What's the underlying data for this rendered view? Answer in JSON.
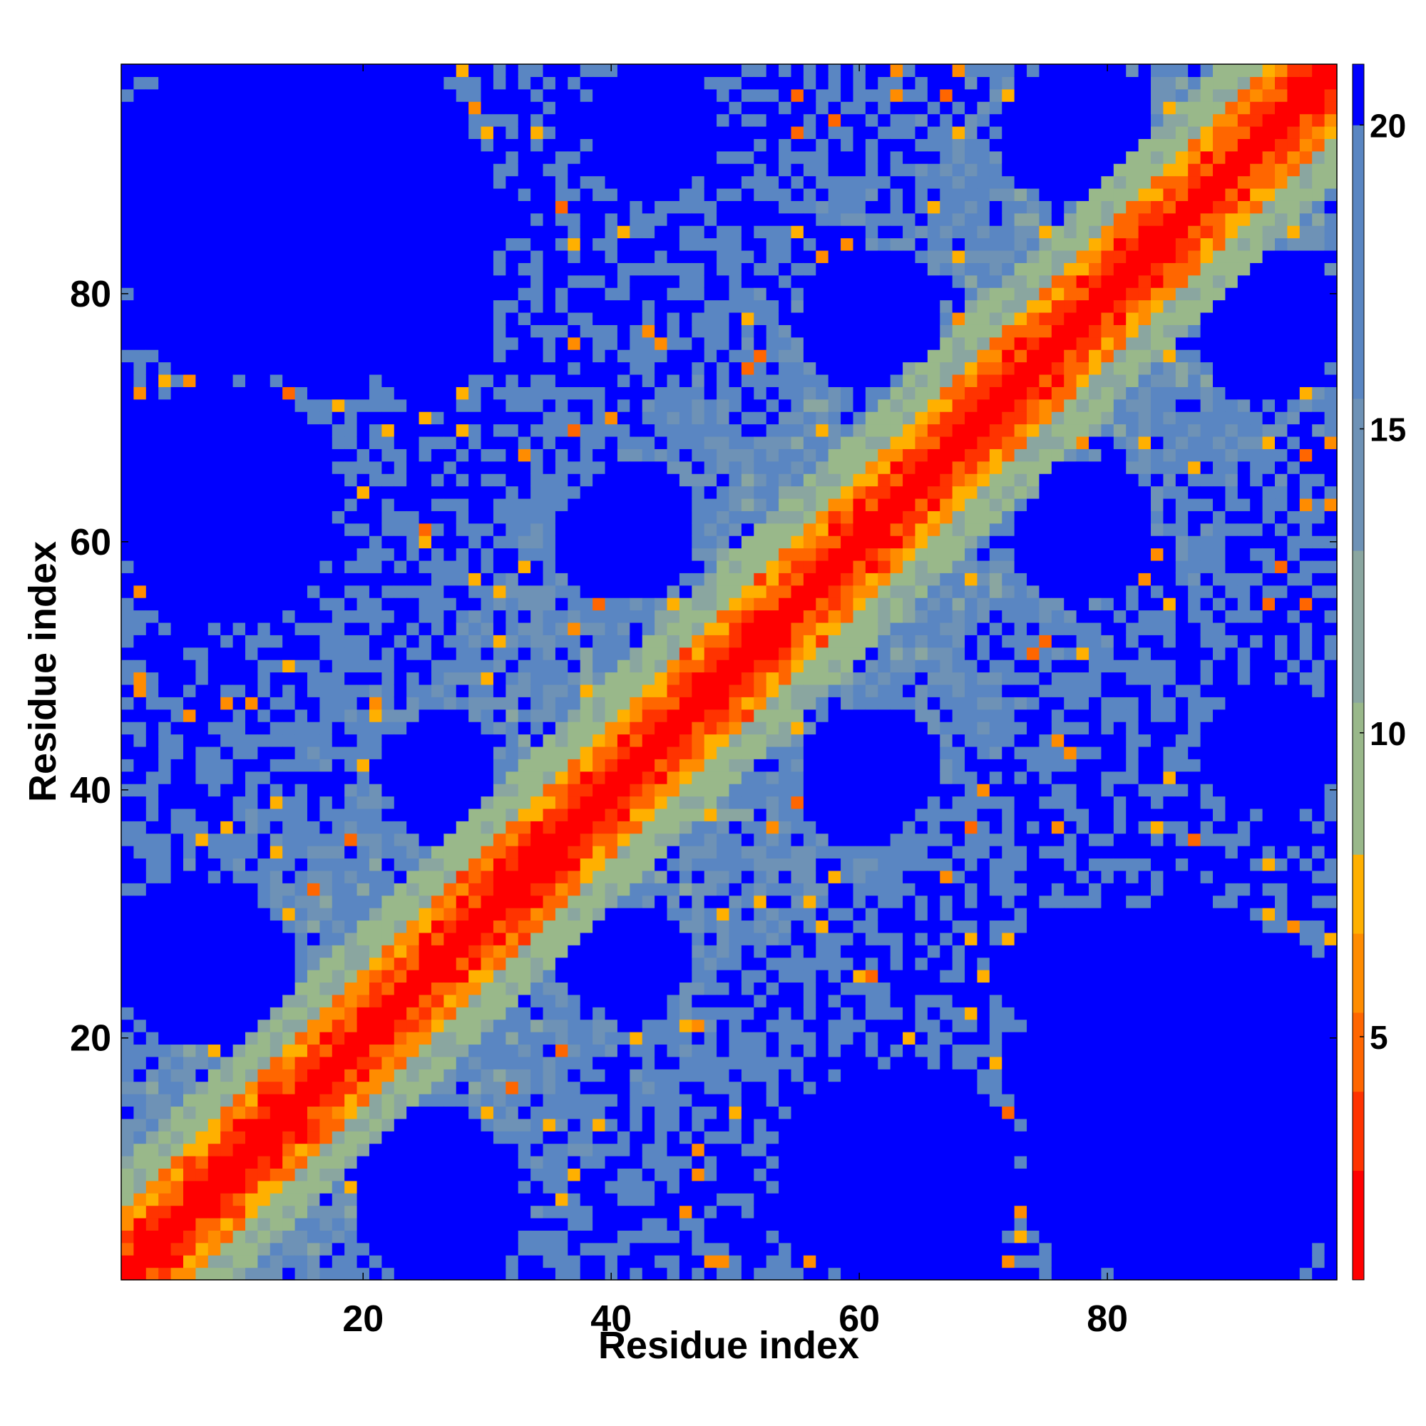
{
  "chart_data": {
    "type": "heatmap",
    "title": "",
    "xlabel": "Residue index",
    "ylabel": "Residue index",
    "n_residues": 98,
    "x_range": [
      1,
      98
    ],
    "y_range": [
      1,
      98
    ],
    "x_ticks": [
      20,
      40,
      60,
      80
    ],
    "y_ticks": [
      20,
      40,
      60,
      80
    ],
    "colorbar": {
      "range": [
        1,
        21
      ],
      "ticks": [
        5,
        10,
        15,
        20
      ],
      "colors": [
        {
          "max": 2.8,
          "color": "#ff0000"
        },
        {
          "max": 4.1,
          "color": "#ff3300"
        },
        {
          "max": 5.4,
          "color": "#ff6600"
        },
        {
          "max": 6.7,
          "color": "#ff8c00"
        },
        {
          "max": 8.0,
          "color": "#ffb000"
        },
        {
          "max": 10.5,
          "color": "#99b88a"
        },
        {
          "max": 13.0,
          "color": "#8aa6a0"
        },
        {
          "max": 15.5,
          "color": "#6e92b6"
        },
        {
          "max": 20.0,
          "color": "#5a86c2"
        },
        {
          "max": 21.0,
          "color": "#0000ff"
        }
      ]
    },
    "diagonal_value": 1,
    "blue_regions": [
      {
        "x": [
          1,
          15
        ],
        "y": [
          74,
          98
        ]
      },
      {
        "x": [
          20,
          30
        ],
        "y": [
          72,
          86
        ]
      },
      {
        "x": [
          1,
          17
        ],
        "y": [
          58,
          72
        ]
      },
      {
        "x": [
          1,
          14
        ],
        "y": [
          21,
          31
        ]
      },
      {
        "x": [
          22,
          30
        ],
        "y": [
          38,
          45
        ]
      },
      {
        "x": [
          36,
          46
        ],
        "y": [
          56,
          64
        ]
      },
      {
        "x": [
          36,
          46
        ],
        "y": [
          23,
          30
        ]
      },
      {
        "x": [
          39,
          48
        ],
        "y": [
          89,
          98
        ]
      },
      {
        "x": [
          56,
          66
        ],
        "y": [
          74,
          83
        ]
      },
      {
        "x": [
          56,
          66
        ],
        "y": [
          38,
          46
        ]
      },
      {
        "x": [
          73,
          83
        ],
        "y": [
          56,
          64
        ]
      },
      {
        "x": [
          73,
          83
        ],
        "y": [
          90,
          98
        ]
      },
      {
        "x": [
          88,
          98
        ],
        "y": [
          72,
          82
        ]
      },
      {
        "x": [
          88,
          98
        ],
        "y": [
          40,
          47
        ]
      },
      {
        "x": [
          74,
          98
        ],
        "y": [
          2,
          30
        ]
      },
      {
        "x": [
          54,
          70
        ],
        "y": [
          1,
          17
        ]
      },
      {
        "x": [
          20,
          32
        ],
        "y": [
          1,
          13
        ]
      }
    ]
  }
}
